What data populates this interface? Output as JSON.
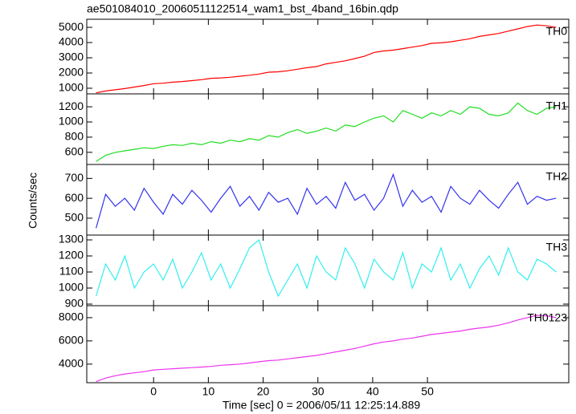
{
  "chart_data": {
    "type": "line",
    "title": "ae501084010_20060511122514_wam1_bst_4band_16bin.qdp",
    "xlabel": "Time [sec] 0 = 2006/05/11 12:25:14.889",
    "ylabel": "Counts/sec",
    "xlim": [
      -12.2,
      75.8
    ],
    "xticks": [
      0,
      10,
      20,
      30,
      40,
      50
    ],
    "x": [
      -10.5,
      -8.75,
      -7,
      -5.25,
      -3.5,
      -1.75,
      0,
      1.75,
      3.5,
      5.25,
      7,
      8.75,
      10.5,
      12.25,
      14,
      15.75,
      17.5,
      19.25,
      21,
      22.75,
      24.5,
      26.25,
      28,
      29.75,
      31.5,
      33.25,
      35,
      36.75,
      38.5,
      40.25,
      42,
      43.75,
      45.5,
      47.25,
      49,
      50.75,
      52.5,
      54.25,
      56,
      57.75,
      59.5,
      61.25,
      63,
      64.75,
      66.5,
      68.25,
      70,
      71.75,
      73.5
    ],
    "series": [
      {
        "name": "TH0",
        "color": "#ff0000",
        "ylim": [
          630,
          5530
        ],
        "yticks": [
          1000,
          2000,
          3000,
          4000,
          5000
        ],
        "values": [
          700,
          820,
          900,
          980,
          1080,
          1180,
          1300,
          1330,
          1400,
          1440,
          1500,
          1560,
          1650,
          1680,
          1720,
          1790,
          1850,
          1930,
          2050,
          2080,
          2150,
          2250,
          2350,
          2420,
          2600,
          2700,
          2800,
          2950,
          3100,
          3350,
          3450,
          3500,
          3600,
          3700,
          3800,
          3950,
          3980,
          4050,
          4150,
          4250,
          4400,
          4500,
          4600,
          4750,
          4900,
          5050,
          5150,
          5100,
          5000
        ]
      },
      {
        "name": "TH1",
        "color": "#22dd22",
        "ylim": [
          440,
          1370
        ],
        "yticks": [
          600,
          800,
          1000,
          1200
        ],
        "values": [
          480,
          560,
          600,
          620,
          640,
          660,
          650,
          680,
          700,
          690,
          720,
          700,
          740,
          720,
          760,
          740,
          780,
          760,
          820,
          800,
          860,
          900,
          850,
          880,
          920,
          880,
          960,
          940,
          1000,
          1050,
          1080,
          1000,
          1150,
          1100,
          1050,
          1120,
          1080,
          1150,
          1100,
          1200,
          1180,
          1100,
          1080,
          1120,
          1250,
          1150,
          1100,
          1180,
          1200
        ]
      },
      {
        "name": "TH2",
        "color": "#3333ee",
        "ylim": [
          415,
          770
        ],
        "yticks": [
          500,
          600,
          700
        ],
        "values": [
          450,
          620,
          560,
          600,
          540,
          650,
          580,
          520,
          620,
          570,
          640,
          590,
          530,
          600,
          660,
          560,
          610,
          540,
          630,
          580,
          600,
          520,
          650,
          570,
          610,
          550,
          680,
          590,
          620,
          540,
          600,
          720,
          560,
          640,
          580,
          610,
          530,
          660,
          600,
          570,
          640,
          590,
          550,
          620,
          680,
          570,
          610,
          590,
          600
        ]
      },
      {
        "name": "TH3",
        "color": "#33eeee",
        "ylim": [
          890,
          1330
        ],
        "yticks": [
          900,
          1000,
          1100,
          1200,
          1300
        ],
        "values": [
          950,
          1150,
          1050,
          1200,
          1000,
          1100,
          1150,
          1050,
          1180,
          1000,
          1100,
          1220,
          1050,
          1150,
          1000,
          1120,
          1250,
          1300,
          1100,
          950,
          1050,
          1150,
          1000,
          1200,
          1100,
          1050,
          1250,
          1150,
          1000,
          1180,
          1100,
          1050,
          1220,
          1000,
          1150,
          1100,
          1250,
          1050,
          1150,
          1000,
          1120,
          1200,
          1080,
          1250,
          1100,
          1050,
          1180,
          1150,
          1100
        ]
      },
      {
        "name": "TH0123",
        "color": "#ee33ee",
        "ylim": [
          2400,
          9030
        ],
        "yticks": [
          4000,
          6000,
          8000
        ],
        "values": [
          2500,
          2800,
          3000,
          3150,
          3250,
          3350,
          3500,
          3550,
          3600,
          3650,
          3700,
          3750,
          3800,
          3900,
          3950,
          4000,
          4100,
          4200,
          4300,
          4350,
          4450,
          4550,
          4650,
          4750,
          4900,
          5050,
          5200,
          5350,
          5550,
          5750,
          5900,
          6000,
          6150,
          6250,
          6400,
          6550,
          6650,
          6750,
          6850,
          7000,
          7100,
          7200,
          7350,
          7550,
          7800,
          8000,
          8200,
          8150,
          8000
        ]
      }
    ]
  }
}
